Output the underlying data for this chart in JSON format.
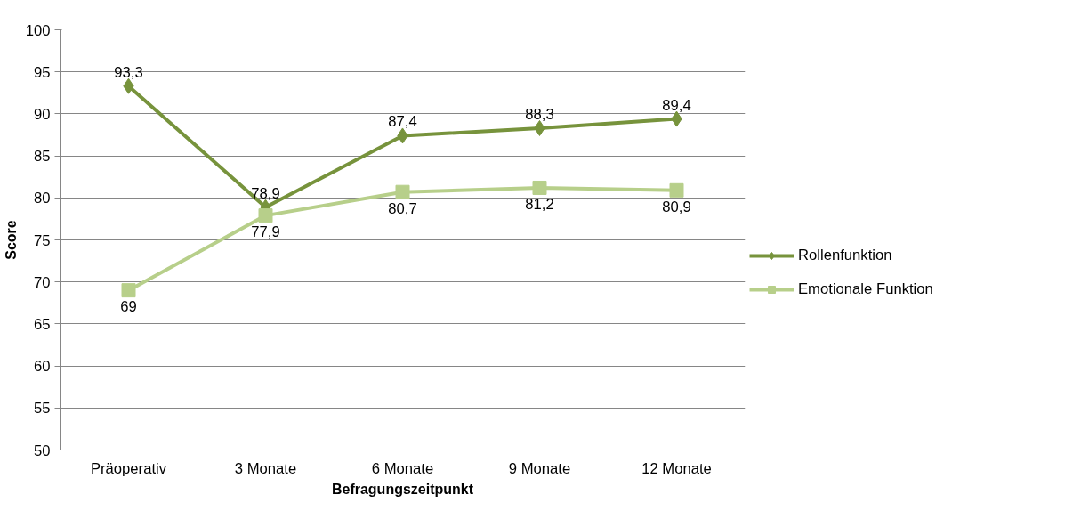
{
  "chart_data": {
    "type": "line",
    "xlabel": "Befragungszeitpunkt",
    "ylabel": "Score",
    "categories": [
      "Präoperativ",
      "3 Monate",
      "6 Monate",
      "9 Monate",
      "12 Monate"
    ],
    "series": [
      {
        "name": "Rollenfunktion",
        "color": "#77933c",
        "marker": "diamond",
        "values": [
          93.3,
          78.9,
          87.4,
          88.3,
          89.4
        ],
        "value_labels": [
          "93,3",
          "78,9",
          "87,4",
          "88,3",
          "89,4"
        ]
      },
      {
        "name": "Emotionale Funktion",
        "color": "#b7cf8a",
        "marker": "square",
        "values": [
          69,
          77.9,
          80.7,
          81.2,
          80.9
        ],
        "value_labels": [
          "69",
          "77,9",
          "80,7",
          "81,2",
          "80,9"
        ]
      }
    ],
    "ylim": [
      50,
      100
    ],
    "yticks": [
      50,
      55,
      60,
      65,
      70,
      75,
      80,
      85,
      90,
      95,
      100
    ],
    "grid": "y",
    "legend": "right",
    "line_style": "solid"
  }
}
